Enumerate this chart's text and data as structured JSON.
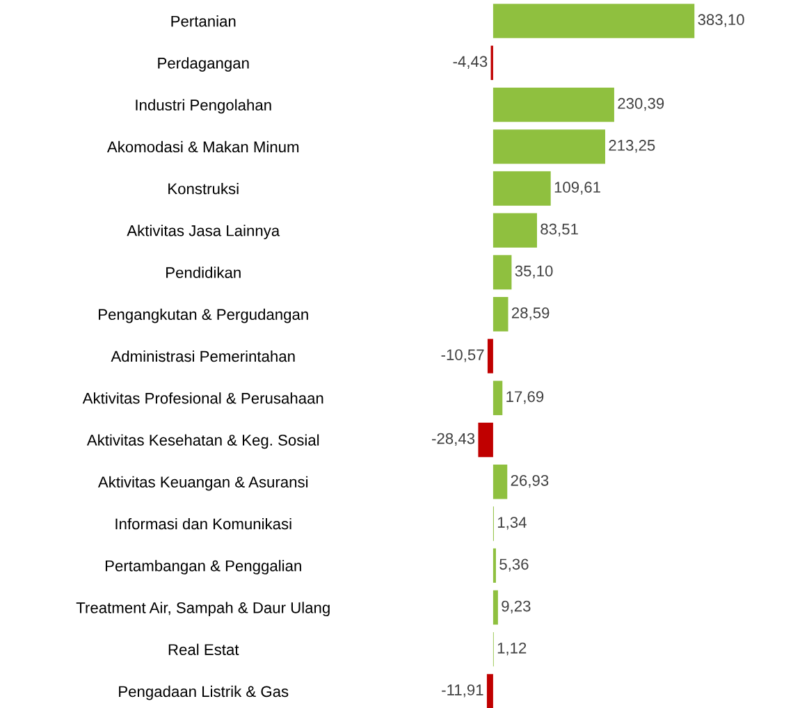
{
  "chart_data": {
    "type": "bar",
    "orientation": "horizontal",
    "categories": [
      "Pertanian",
      "Perdagangan",
      "Industri Pengolahan",
      "Akomodasi & Makan Minum",
      "Konstruksi",
      "Aktivitas Jasa Lainnya",
      "Pendidikan",
      "Pengangkutan & Pergudangan",
      "Administrasi Pemerintahan",
      "Aktivitas Profesional & Perusahaan",
      "Aktivitas Kesehatan & Keg. Sosial",
      "Aktivitas Keuangan & Asuransi",
      "Informasi dan Komunikasi",
      "Pertambangan & Penggalian",
      "Treatment Air, Sampah & Daur Ulang",
      "Real Estat",
      "Pengadaan Listrik & Gas"
    ],
    "values": [
      383.1,
      -4.43,
      230.39,
      213.25,
      109.61,
      83.51,
      35.1,
      28.59,
      -10.57,
      17.69,
      -28.43,
      26.93,
      1.34,
      5.36,
      9.23,
      1.12,
      -11.91
    ],
    "value_labels": [
      "383,10",
      "-4,43",
      "230,39",
      "213,25",
      "109,61",
      "83,51",
      "35,10",
      "28,59",
      "-10,57",
      "17,69",
      "-28,43",
      "26,93",
      "1,34",
      "5,36",
      "9,23",
      "1,12",
      "-11,91"
    ],
    "colors": [
      "#8fc03f",
      "#c00000",
      "#8fc03f",
      "#8fc03f",
      "#8fc03f",
      "#8fc03f",
      "#8fc03f",
      "#8fc03f",
      "#c00000",
      "#8fc03f",
      "#c00000",
      "#8fc03f",
      "#8fc03f",
      "#8fc03f",
      "#8fc03f",
      "#8fc03f",
      "#c00000"
    ],
    "grid": false,
    "legend": false
  }
}
